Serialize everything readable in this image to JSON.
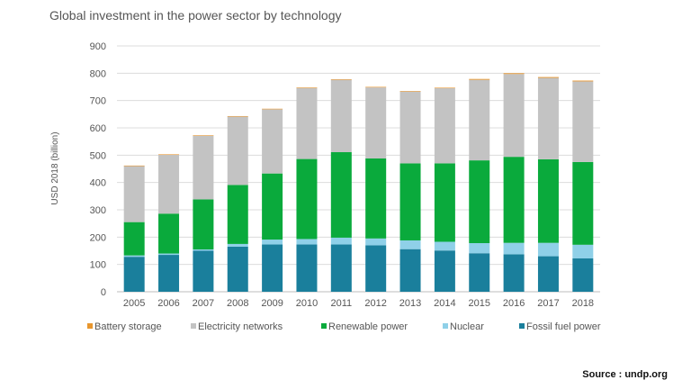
{
  "chart_data": {
    "type": "bar",
    "stacked": true,
    "title": "Global investment in the power sector by technology",
    "ylabel": "USD 2018 (billion)",
    "ylim": [
      0,
      900
    ],
    "yticks": [
      0,
      100,
      200,
      300,
      400,
      500,
      600,
      700,
      800,
      900
    ],
    "grid": true,
    "legend_position": "bottom",
    "categories": [
      "2005",
      "2006",
      "2007",
      "2008",
      "2009",
      "2010",
      "2011",
      "2012",
      "2013",
      "2014",
      "2015",
      "2016",
      "2017",
      "2018"
    ],
    "series": [
      {
        "name": "Fossil fuel power",
        "color": "#1a7f9c",
        "values": [
          128,
          135,
          150,
          165,
          173,
          173,
          173,
          170,
          156,
          151,
          141,
          137,
          130,
          122
        ]
      },
      {
        "name": "Nuclear",
        "color": "#8fd0e8",
        "values": [
          5,
          5,
          5,
          10,
          18,
          20,
          25,
          25,
          32,
          32,
          37,
          42,
          49,
          50
        ]
      },
      {
        "name": "Renewable power",
        "color": "#0aaa3c",
        "values": [
          122,
          146,
          183,
          216,
          242,
          293,
          313,
          293,
          282,
          287,
          303,
          315,
          306,
          303
        ]
      },
      {
        "name": "Electricity networks",
        "color": "#c3c3c3",
        "values": [
          205,
          215,
          233,
          250,
          235,
          260,
          265,
          260,
          263,
          275,
          295,
          303,
          298,
          295
        ]
      },
      {
        "name": "Battery storage",
        "color": "#e8962e",
        "values": [
          2,
          2,
          2,
          2,
          2,
          2,
          2,
          2,
          2,
          2,
          3,
          3,
          3,
          3
        ]
      }
    ],
    "legend_order": [
      "Battery storage",
      "Electricity networks",
      "Renewable power",
      "Nuclear",
      "Fossil fuel power"
    ]
  },
  "source_note": "Source : undp.org"
}
